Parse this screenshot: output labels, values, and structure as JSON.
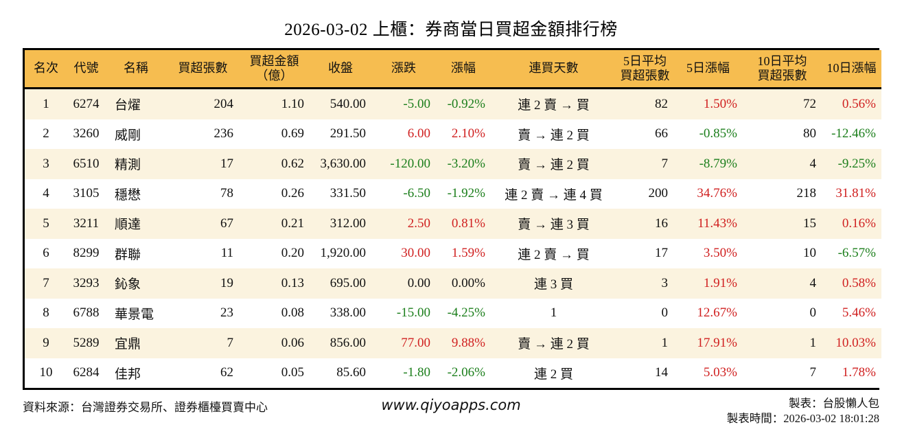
{
  "title": "2026-03-02 上櫃：券商當日買超金額排行榜",
  "colors": {
    "up": "#d02020",
    "down": "#1b7e1b",
    "header_bg": "#f6bd50",
    "row_stripe_bg": "#fbf3df",
    "border": "#000000"
  },
  "table": {
    "columns": [
      {
        "id": "rank",
        "label": "名次"
      },
      {
        "id": "code",
        "label": "代號"
      },
      {
        "id": "name",
        "label": "名稱"
      },
      {
        "id": "lots",
        "label": "買超張數"
      },
      {
        "id": "amount",
        "label": "買超金額\n（億）"
      },
      {
        "id": "close",
        "label": "收盤"
      },
      {
        "id": "change",
        "label": "漲跌"
      },
      {
        "id": "change_pct",
        "label": "漲幅"
      },
      {
        "id": "streak",
        "label": "連買天數"
      },
      {
        "id": "avg5",
        "label": "5日平均\n買超張數"
      },
      {
        "id": "pct5",
        "label": "5日漲幅"
      },
      {
        "id": "avg10",
        "label": "10日平均\n買超張數"
      },
      {
        "id": "pct10",
        "label": "10日漲幅"
      }
    ],
    "rows": [
      {
        "rank": "1",
        "code": "6274",
        "name": "台燿",
        "lots": "204",
        "amount": "1.10",
        "close": "540.00",
        "change": "-5.00",
        "change_dir": "down",
        "change_pct": "-0.92%",
        "streak": "連 2 賣 → 買",
        "avg5": "82",
        "pct5": "1.50%",
        "pct5_dir": "up",
        "avg10": "72",
        "pct10": "0.56%",
        "pct10_dir": "up"
      },
      {
        "rank": "2",
        "code": "3260",
        "name": "威剛",
        "lots": "236",
        "amount": "0.69",
        "close": "291.50",
        "change": "6.00",
        "change_dir": "up",
        "change_pct": "2.10%",
        "streak": "賣 → 連 2 買",
        "avg5": "66",
        "pct5": "-0.85%",
        "pct5_dir": "down",
        "avg10": "80",
        "pct10": "-12.46%",
        "pct10_dir": "down"
      },
      {
        "rank": "3",
        "code": "6510",
        "name": "精測",
        "lots": "17",
        "amount": "0.62",
        "close": "3,630.00",
        "change": "-120.00",
        "change_dir": "down",
        "change_pct": "-3.20%",
        "streak": "賣 → 連 2 買",
        "avg5": "7",
        "pct5": "-8.79%",
        "pct5_dir": "down",
        "avg10": "4",
        "pct10": "-9.25%",
        "pct10_dir": "down"
      },
      {
        "rank": "4",
        "code": "3105",
        "name": "穩懋",
        "lots": "78",
        "amount": "0.26",
        "close": "331.50",
        "change": "-6.50",
        "change_dir": "down",
        "change_pct": "-1.92%",
        "streak": "連 2 賣 → 連 4 買",
        "avg5": "200",
        "pct5": "34.76%",
        "pct5_dir": "up",
        "avg10": "218",
        "pct10": "31.81%",
        "pct10_dir": "up"
      },
      {
        "rank": "5",
        "code": "3211",
        "name": "順達",
        "lots": "67",
        "amount": "0.21",
        "close": "312.00",
        "change": "2.50",
        "change_dir": "up",
        "change_pct": "0.81%",
        "streak": "賣 → 連 3 買",
        "avg5": "16",
        "pct5": "11.43%",
        "pct5_dir": "up",
        "avg10": "15",
        "pct10": "0.16%",
        "pct10_dir": "up"
      },
      {
        "rank": "6",
        "code": "8299",
        "name": "群聯",
        "lots": "11",
        "amount": "0.20",
        "close": "1,920.00",
        "change": "30.00",
        "change_dir": "up",
        "change_pct": "1.59%",
        "streak": "連 2 賣 → 買",
        "avg5": "17",
        "pct5": "3.50%",
        "pct5_dir": "up",
        "avg10": "10",
        "pct10": "-6.57%",
        "pct10_dir": "down"
      },
      {
        "rank": "7",
        "code": "3293",
        "name": "鈊象",
        "lots": "19",
        "amount": "0.13",
        "close": "695.00",
        "change": "0.00",
        "change_dir": "flat",
        "change_pct": "0.00%",
        "streak": "連 3 買",
        "avg5": "3",
        "pct5": "1.91%",
        "pct5_dir": "up",
        "avg10": "4",
        "pct10": "0.58%",
        "pct10_dir": "up"
      },
      {
        "rank": "8",
        "code": "6788",
        "name": "華景電",
        "lots": "23",
        "amount": "0.08",
        "close": "338.00",
        "change": "-15.00",
        "change_dir": "down",
        "change_pct": "-4.25%",
        "streak": "1",
        "avg5": "0",
        "pct5": "12.67%",
        "pct5_dir": "up",
        "avg10": "0",
        "pct10": "5.46%",
        "pct10_dir": "up"
      },
      {
        "rank": "9",
        "code": "5289",
        "name": "宜鼎",
        "lots": "7",
        "amount": "0.06",
        "close": "856.00",
        "change": "77.00",
        "change_dir": "up",
        "change_pct": "9.88%",
        "streak": "賣 → 連 2 買",
        "avg5": "1",
        "pct5": "17.91%",
        "pct5_dir": "up",
        "avg10": "1",
        "pct10": "10.03%",
        "pct10_dir": "up"
      },
      {
        "rank": "10",
        "code": "6284",
        "name": "佳邦",
        "lots": "62",
        "amount": "0.05",
        "close": "85.60",
        "change": "-1.80",
        "change_dir": "down",
        "change_pct": "-2.06%",
        "streak": "連 2 買",
        "avg5": "14",
        "pct5": "5.03%",
        "pct5_dir": "up",
        "avg10": "7",
        "pct10": "1.78%",
        "pct10_dir": "up"
      }
    ]
  },
  "footer": {
    "source": "資料來源：台灣證券交易所、證券櫃檯買賣中心",
    "website": "www.qiyoapps.com",
    "author": "製表：台股懶人包",
    "generated_at": "製表時間：2026-03-02 18:01:28"
  }
}
